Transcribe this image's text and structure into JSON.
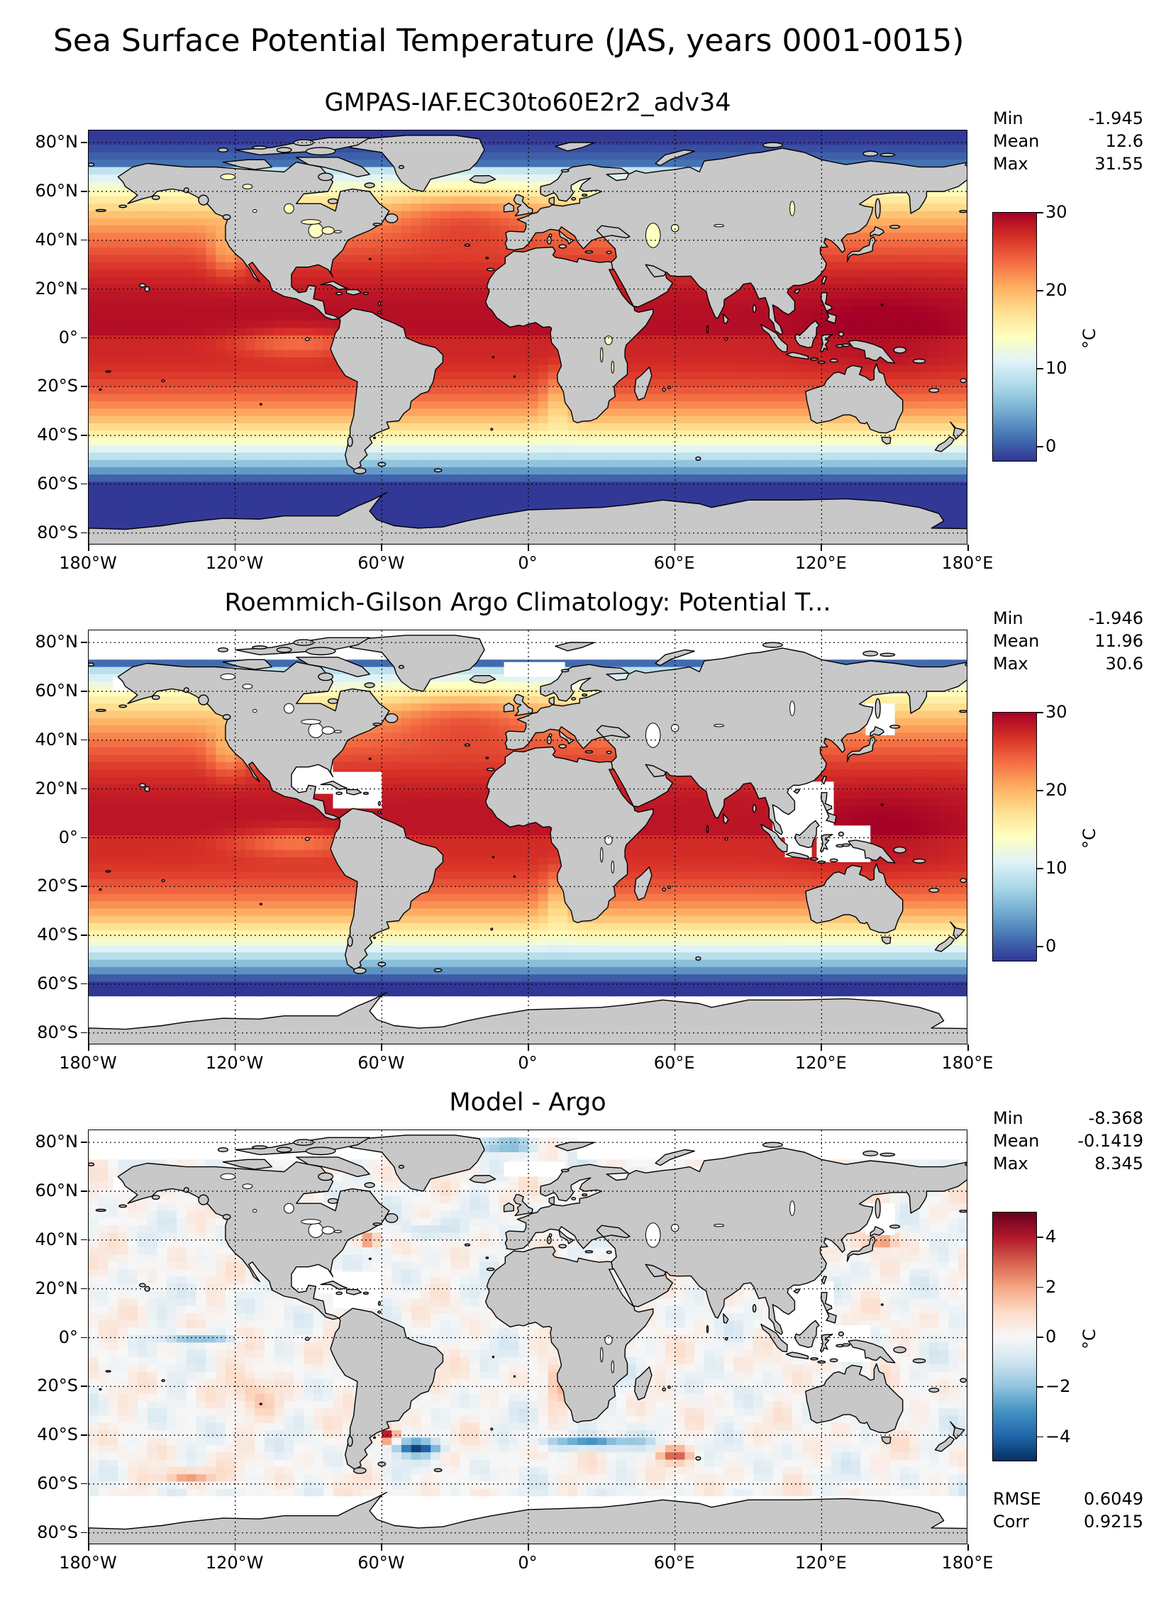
{
  "figure": {
    "suptitle": "Sea Surface Potential Temperature (JAS, years 0001-0015)"
  },
  "axes": {
    "y_labels": [
      "80°N",
      "60°N",
      "40°N",
      "20°N",
      "0°",
      "20°S",
      "40°S",
      "60°S",
      "80°S"
    ],
    "x_labels": [
      "180°W",
      "120°W",
      "60°W",
      "0°",
      "60°E",
      "120°E",
      "180°E"
    ]
  },
  "panels": [
    {
      "title": "GMPAS-IAF.EC30to60E2r2_adv34",
      "stats": [
        {
          "label": "Min",
          "value": "-1.945"
        },
        {
          "label": "Mean",
          "value": "12.6"
        },
        {
          "label": "Max",
          "value": "31.55"
        }
      ],
      "colorbar": {
        "ticks": [
          "30",
          "20",
          "10",
          "0"
        ],
        "unit": "°C",
        "colormap": "RdYlBu_r",
        "range": [
          -2,
          30
        ]
      }
    },
    {
      "title": "Roemmich-Gilson Argo Climatology: Potential T...",
      "stats": [
        {
          "label": "Min",
          "value": "-1.946"
        },
        {
          "label": "Mean",
          "value": "11.96"
        },
        {
          "label": "Max",
          "value": "30.6"
        }
      ],
      "colorbar": {
        "ticks": [
          "30",
          "20",
          "10",
          "0"
        ],
        "unit": "°C",
        "colormap": "RdYlBu_r",
        "range": [
          -2,
          30
        ]
      }
    },
    {
      "title": "Model - Argo",
      "stats": [
        {
          "label": "Min",
          "value": "-8.368"
        },
        {
          "label": "Mean",
          "value": "-0.1419"
        },
        {
          "label": "Max",
          "value": "8.345"
        }
      ],
      "extra_stats": [
        {
          "label": "RMSE",
          "value": "0.6049"
        },
        {
          "label": "Corr",
          "value": "0.9215"
        }
      ],
      "colorbar": {
        "ticks": [
          "4",
          "2",
          "0",
          "−2",
          "−4"
        ],
        "unit": "°C",
        "colormap": "RdBu_r",
        "range": [
          -5,
          5
        ]
      }
    }
  ],
  "colors": {
    "land": "#c8c8c8",
    "rdylbu": [
      "#313695",
      "#4575b4",
      "#74add1",
      "#abd9e9",
      "#e0f3f8",
      "#ffffbf",
      "#fee090",
      "#fdae61",
      "#f46d43",
      "#d73027",
      "#a50026"
    ],
    "rdbu": [
      "#053061",
      "#2166ac",
      "#4393c3",
      "#92c5de",
      "#d1e5f0",
      "#f7f7f7",
      "#fddbc7",
      "#f4a582",
      "#d6604d",
      "#b2182b",
      "#67001f"
    ]
  }
}
